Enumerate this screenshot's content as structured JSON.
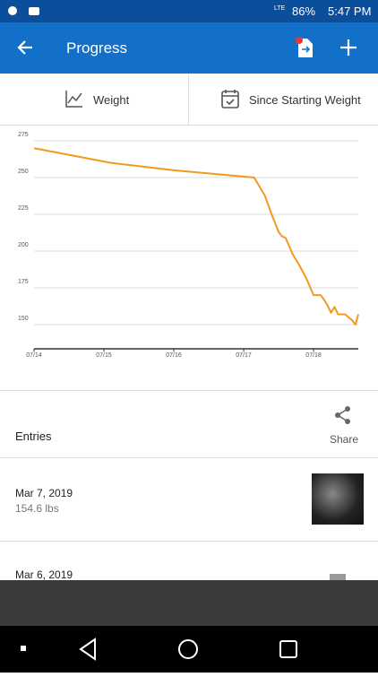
{
  "status_bar": {
    "network": "LTE",
    "battery": "86%",
    "time": "5:47 PM"
  },
  "app_bar": {
    "title": "Progress"
  },
  "tabs": [
    "Weight",
    "Since Starting Weight"
  ],
  "chart_data": {
    "type": "line",
    "x": [
      0,
      1.1,
      2,
      3.15,
      3.3,
      3.4,
      3.5,
      3.55,
      3.6,
      3.7,
      3.8,
      3.9,
      4.0,
      4.1,
      4.15,
      4.2,
      4.25,
      4.3,
      4.35,
      4.45,
      4.55,
      4.6,
      4.64
    ],
    "series": [
      {
        "color": "#f39a1e",
        "values": [
          270,
          260,
          255,
          250,
          238,
          225,
          213,
          210,
          209,
          198,
          190,
          181,
          170,
          170,
          167,
          163,
          158,
          162,
          157,
          157,
          153,
          150,
          157
        ]
      }
    ],
    "xlim": [
      0,
      4.64
    ],
    "ylim": [
      133.5,
      279.3
    ],
    "xticks": [
      {
        "value": 0,
        "label": "07/14"
      },
      {
        "value": 1,
        "label": "07/15"
      },
      {
        "value": 2,
        "label": "07/16"
      },
      {
        "value": 3,
        "label": "07/17"
      },
      {
        "value": 4,
        "label": "07/18"
      }
    ],
    "yticks": [
      150,
      175,
      200,
      225,
      250,
      275
    ],
    "grid": true
  },
  "entries": {
    "title": "Entries",
    "share": "Share",
    "items": [
      {
        "date": "Mar 7, 2019",
        "weight": "154.6 lbs"
      },
      {
        "date": "Mar 6, 2019"
      }
    ]
  }
}
